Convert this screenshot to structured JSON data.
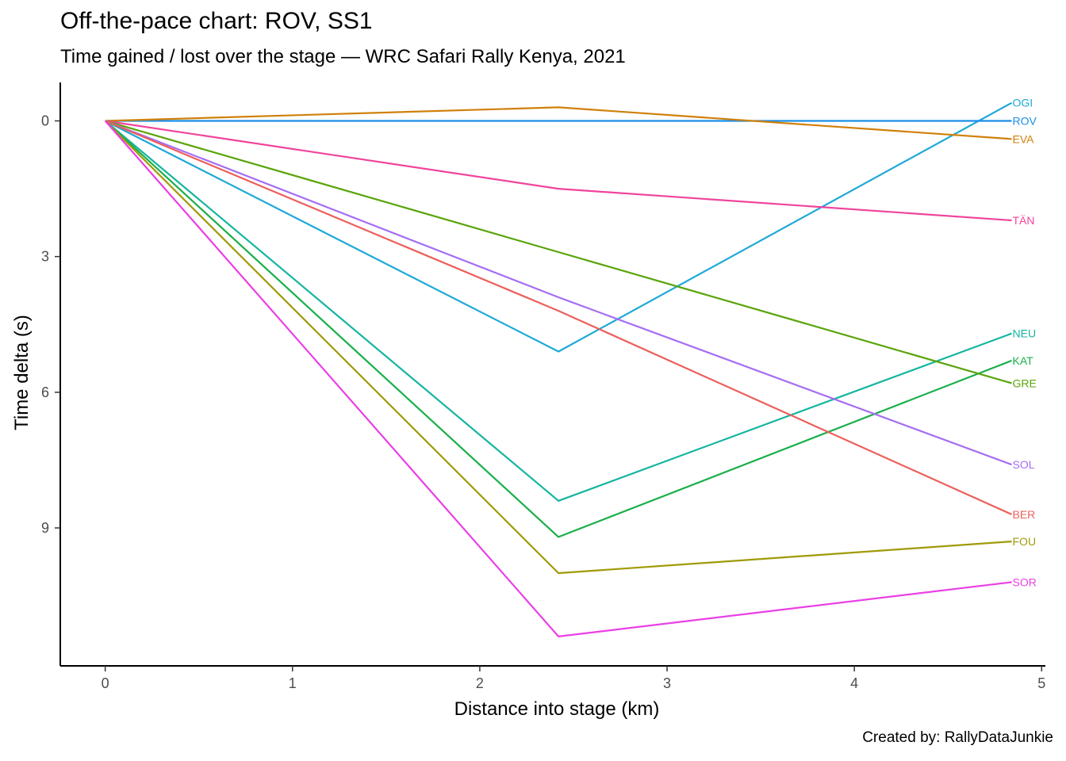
{
  "chart_data": {
    "type": "line",
    "title": "Off-the-pace chart: ROV, SS1",
    "subtitle": "Time gained / lost over the stage — WRC Safari Rally Kenya, 2021",
    "caption": "Created by: RallyDataJunkie",
    "xlabel": "Distance into stage (km)",
    "ylabel": "Time delta (s)",
    "xlim": [
      -0.24,
      5.02
    ],
    "ylim": [
      -0.85,
      12.05
    ],
    "y_reversed": true,
    "x_ticks": [
      0,
      1,
      2,
      3,
      4,
      5
    ],
    "y_ticks": [
      0,
      3,
      6,
      9
    ],
    "grid": false,
    "legend": "none",
    "x": [
      0,
      2.42,
      4.84
    ],
    "series": [
      {
        "name": "OGI",
        "color": "#1fa9d8",
        "values": [
          0,
          5.1,
          -0.4
        ]
      },
      {
        "name": "ROV",
        "color": "#1a8fe6",
        "values": [
          0,
          0,
          0
        ]
      },
      {
        "name": "EVA",
        "color": "#d0800a",
        "values": [
          0,
          -0.3,
          0.4
        ]
      },
      {
        "name": "TÄN",
        "color": "#f0449c",
        "values": [
          0,
          1.5,
          2.2
        ]
      },
      {
        "name": "NEU",
        "color": "#15b5a0",
        "values": [
          0,
          8.4,
          4.7
        ]
      },
      {
        "name": "KAT",
        "color": "#1aaf4a",
        "values": [
          0,
          9.2,
          5.3
        ]
      },
      {
        "name": "GRE",
        "color": "#5aa40a",
        "values": [
          0,
          2.9,
          5.8
        ]
      },
      {
        "name": "SOL",
        "color": "#a56ef2",
        "values": [
          0,
          3.9,
          7.6
        ]
      },
      {
        "name": "BER",
        "color": "#ec5f5b",
        "values": [
          0,
          4.2,
          8.7
        ]
      },
      {
        "name": "FOU",
        "color": "#9f9a08",
        "values": [
          0,
          10.0,
          9.3
        ]
      },
      {
        "name": "SOR",
        "color": "#ea3fe6",
        "values": [
          0,
          11.4,
          10.2
        ]
      }
    ]
  }
}
